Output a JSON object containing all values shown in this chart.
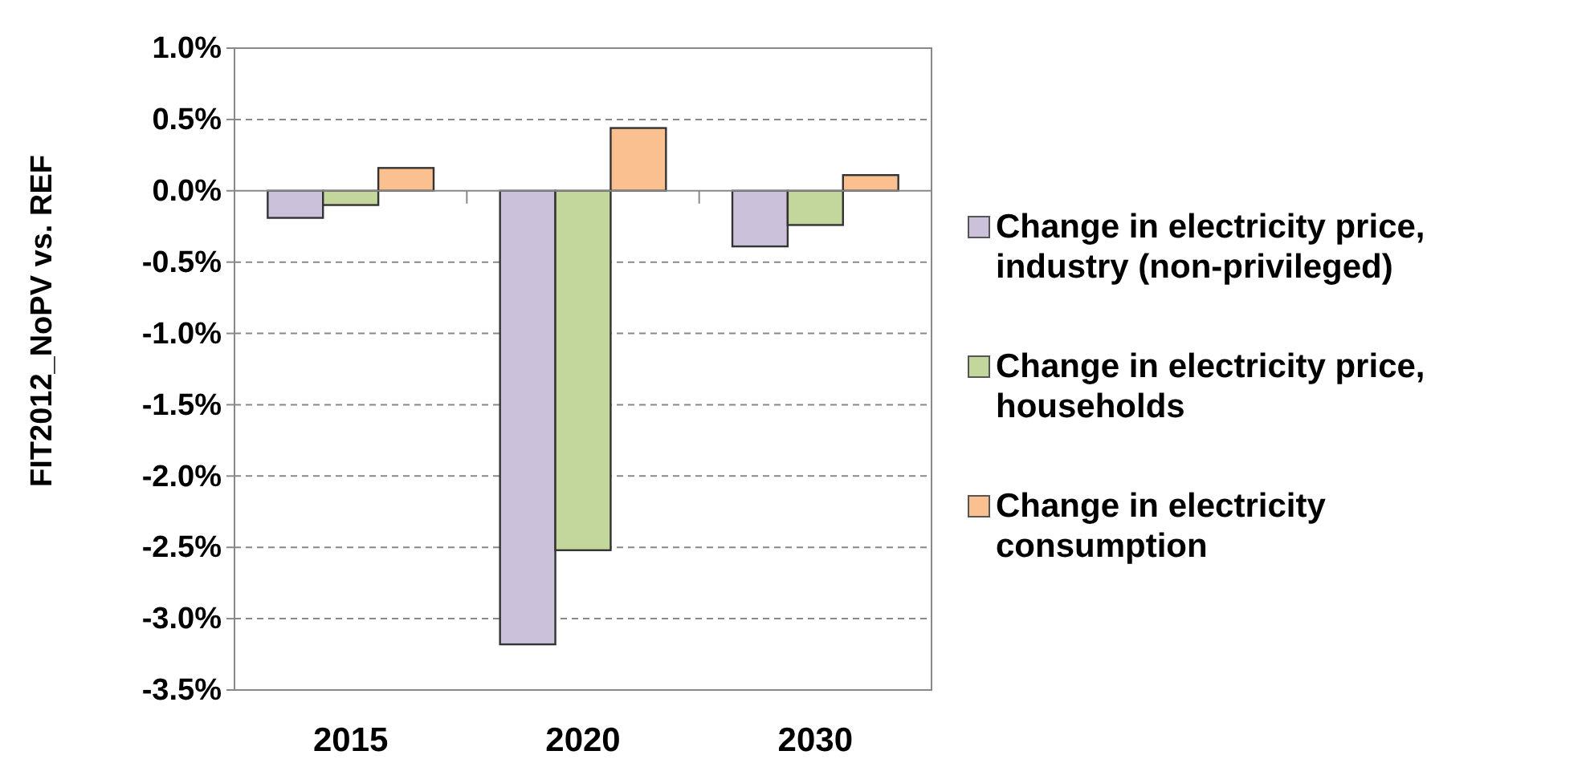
{
  "chart_data": {
    "type": "bar",
    "ylabel": "FIT2012_NoPV vs. REF",
    "categories": [
      "2015",
      "2020",
      "2030"
    ],
    "series": [
      {
        "name": "Change in electricity price, industry (non-privileged)",
        "color": "#ccc1da",
        "values": [
          -0.19,
          -3.18,
          -0.39
        ]
      },
      {
        "name": "Change in electricity price, households",
        "color": "#c3d69b",
        "values": [
          -0.1,
          -2.52,
          -0.24
        ]
      },
      {
        "name": "Change in electricity consumption",
        "color": "#fac090",
        "values": [
          0.16,
          0.44,
          0.11
        ]
      }
    ],
    "ylim": [
      -3.5,
      1.0
    ],
    "yticks": [
      {
        "value": -3.5,
        "label": "-3.5%"
      },
      {
        "value": -3.0,
        "label": "-3.0%"
      },
      {
        "value": -2.5,
        "label": "-2.5%"
      },
      {
        "value": -2.0,
        "label": "-2.0%"
      },
      {
        "value": -1.5,
        "label": "-1.5%"
      },
      {
        "value": -1.0,
        "label": "-1.0%"
      },
      {
        "value": -0.5,
        "label": "-0.5%"
      },
      {
        "value": 0.0,
        "label": "0.0%"
      },
      {
        "value": 0.5,
        "label": "0.5%"
      },
      {
        "value": 1.0,
        "label": "1.0%"
      }
    ],
    "grid": "y",
    "legend": "right"
  }
}
